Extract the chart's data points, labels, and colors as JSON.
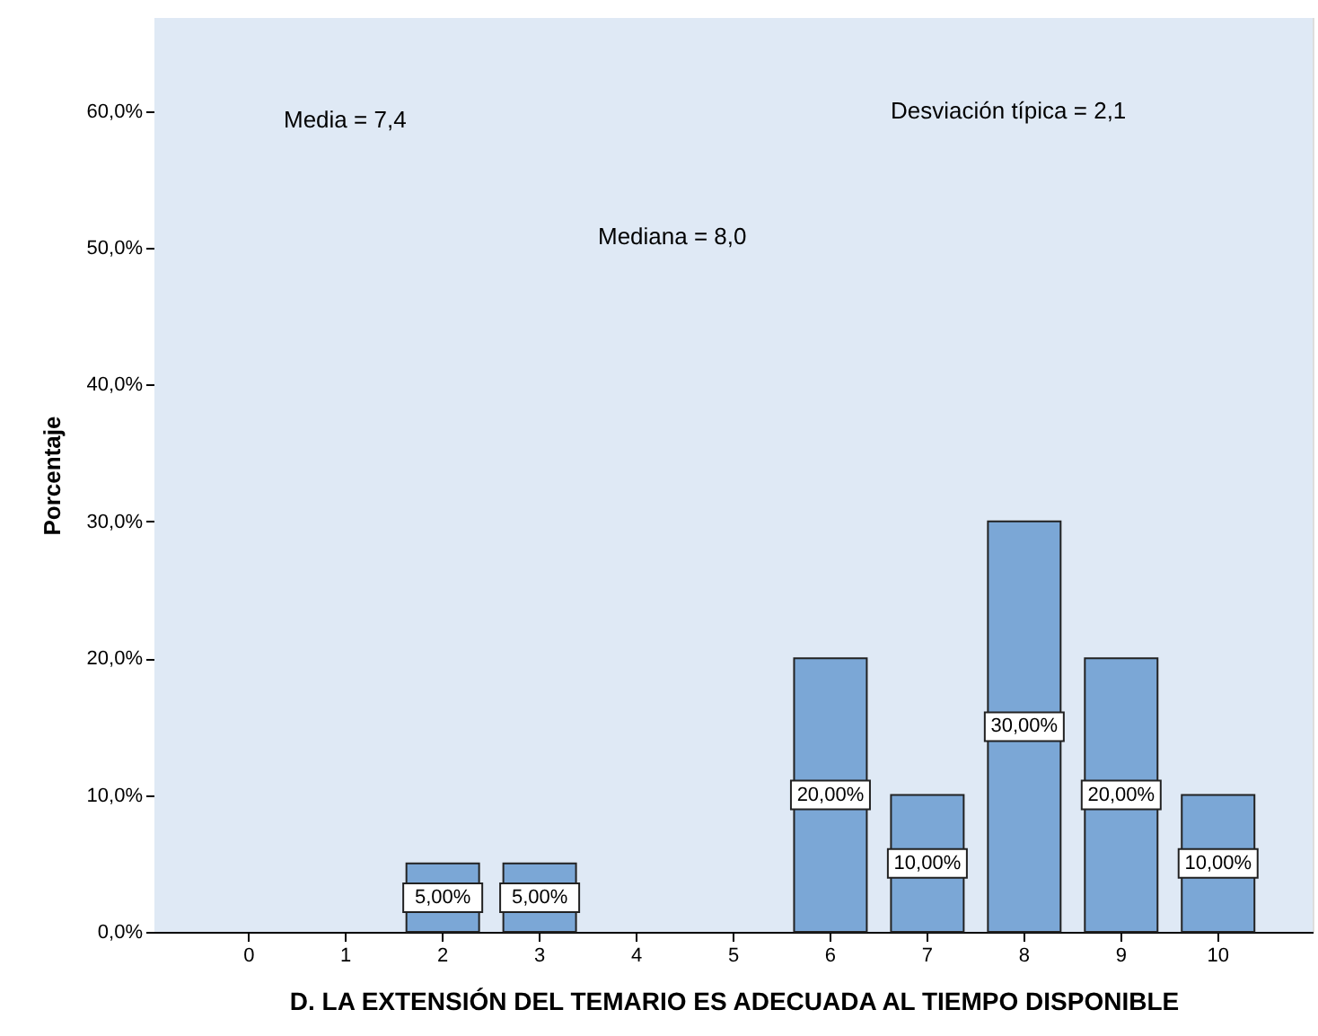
{
  "chart_data": {
    "type": "bar",
    "xlabel": "D. LA EXTENSIÓN DEL TEMARIO ES ADECUADA AL TIEMPO DISPONIBLE",
    "ylabel": "Porcentaje",
    "categories": [
      "0",
      "1",
      "2",
      "3",
      "4",
      "5",
      "6",
      "7",
      "8",
      "9",
      "10"
    ],
    "values": [
      0,
      0,
      5,
      5,
      0,
      0,
      20,
      10,
      30,
      20,
      10
    ],
    "value_labels": [
      null,
      null,
      "5,00%",
      "5,00%",
      null,
      null,
      "20,00%",
      "10,00%",
      "30,00%",
      "20,00%",
      "10,00%"
    ],
    "color": "#7ba7d6",
    "ylim": [
      0,
      66.8
    ],
    "yticks": [
      {
        "value": 0,
        "label": "0,0%"
      },
      {
        "value": 10,
        "label": "10,0%"
      },
      {
        "value": 20,
        "label": "20,0%"
      },
      {
        "value": 30,
        "label": "30,0%"
      },
      {
        "value": 40,
        "label": "40,0%"
      },
      {
        "value": 50,
        "label": "50,0%"
      },
      {
        "value": 60,
        "label": "60,0%"
      }
    ],
    "annotations": [
      "Media = 7,4",
      "Desviación típica = 2,1",
      "Mediana = 8,0"
    ],
    "legend": false
  }
}
